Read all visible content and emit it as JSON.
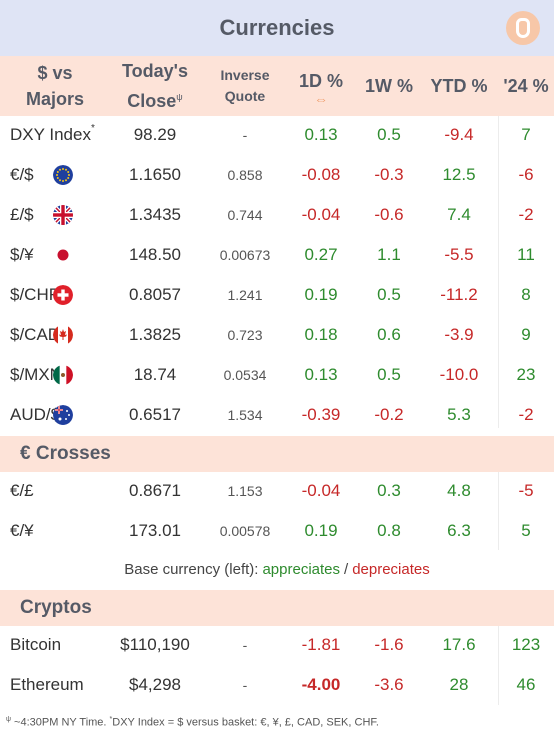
{
  "title": "Currencies",
  "headers": {
    "pair_line1": "$ vs",
    "pair_line2": "Majors",
    "close_line1": "Today's",
    "close_line2": "Close",
    "close_sup": "ψ",
    "inverse_line1": "Inverse",
    "inverse_line2": "Quote",
    "d1": "1D %",
    "d1_arrow": "⇔",
    "w1": "1W %",
    "ytd": "YTD %",
    "y24": "'24 %"
  },
  "majors": [
    {
      "name": "DXY Index",
      "sup": "*",
      "flag": "",
      "close": "98.29",
      "inverse": "-",
      "d1": "0.13",
      "w1": "0.5",
      "ytd": "-9.4",
      "y24": "7"
    },
    {
      "name": "€/$",
      "flag": "eu",
      "close": "1.1650",
      "inverse": "0.858",
      "d1": "-0.08",
      "w1": "-0.3",
      "ytd": "12.5",
      "y24": "-6"
    },
    {
      "name": "£/$",
      "flag": "uk",
      "close": "1.3435",
      "inverse": "0.744",
      "d1": "-0.04",
      "w1": "-0.6",
      "ytd": "7.4",
      "y24": "-2"
    },
    {
      "name": "$/¥",
      "flag": "jp",
      "close": "148.50",
      "inverse": "0.00673",
      "d1": "0.27",
      "w1": "1.1",
      "ytd": "-5.5",
      "y24": "11"
    },
    {
      "name": "$/CHF",
      "flag": "ch",
      "close": "0.8057",
      "inverse": "1.241",
      "d1": "0.19",
      "w1": "0.5",
      "ytd": "-11.2",
      "y24": "8"
    },
    {
      "name": "$/CAD",
      "flag": "ca",
      "close": "1.3825",
      "inverse": "0.723",
      "d1": "0.18",
      "w1": "0.6",
      "ytd": "-3.9",
      "y24": "9"
    },
    {
      "name": "$/MXN",
      "flag": "mx",
      "close": "18.74",
      "inverse": "0.0534",
      "d1": "0.13",
      "w1": "0.5",
      "ytd": "-10.0",
      "y24": "23"
    },
    {
      "name": "AUD/$",
      "flag": "au",
      "close": "0.6517",
      "inverse": "1.534",
      "d1": "-0.39",
      "w1": "-0.2",
      "ytd": "5.3",
      "y24": "-2"
    }
  ],
  "crosses_title": "€ Crosses",
  "crosses": [
    {
      "name": "€/£",
      "close": "0.8671",
      "inverse": "1.153",
      "d1": "-0.04",
      "w1": "0.3",
      "ytd": "4.8",
      "y24": "-5"
    },
    {
      "name": "€/¥",
      "close": "173.01",
      "inverse": "0.00578",
      "d1": "0.19",
      "w1": "0.8",
      "ytd": "6.3",
      "y24": "5"
    }
  ],
  "legend": {
    "prefix": "Base currency (left):",
    "appreciates": "appreciates",
    "sep": "/",
    "depreciates": "depreciates"
  },
  "cryptos_title": "Cryptos",
  "cryptos": [
    {
      "name": "Bitcoin",
      "close": "$110,190",
      "inverse": "-",
      "d1": "-1.81",
      "w1": "-1.6",
      "ytd": "17.6",
      "y24": "123"
    },
    {
      "name": "Ethereum",
      "close": "$4,298",
      "inverse": "-",
      "d1": "-4.00",
      "w1": "-3.6",
      "ytd": "28",
      "y24": "46"
    }
  ],
  "footnote": {
    "sup1": "ψ",
    "text1": " ~4:30PM NY Time.   ",
    "sup2": "*",
    "text2": "DXY Index = $ versus basket: €, ¥, £, CAD, SEK, CHF."
  },
  "colors": {
    "positive": "#2e8b2e",
    "negative": "#c62828",
    "header_bg": "#fde3d8",
    "title_bg": "#dfe4f5"
  }
}
